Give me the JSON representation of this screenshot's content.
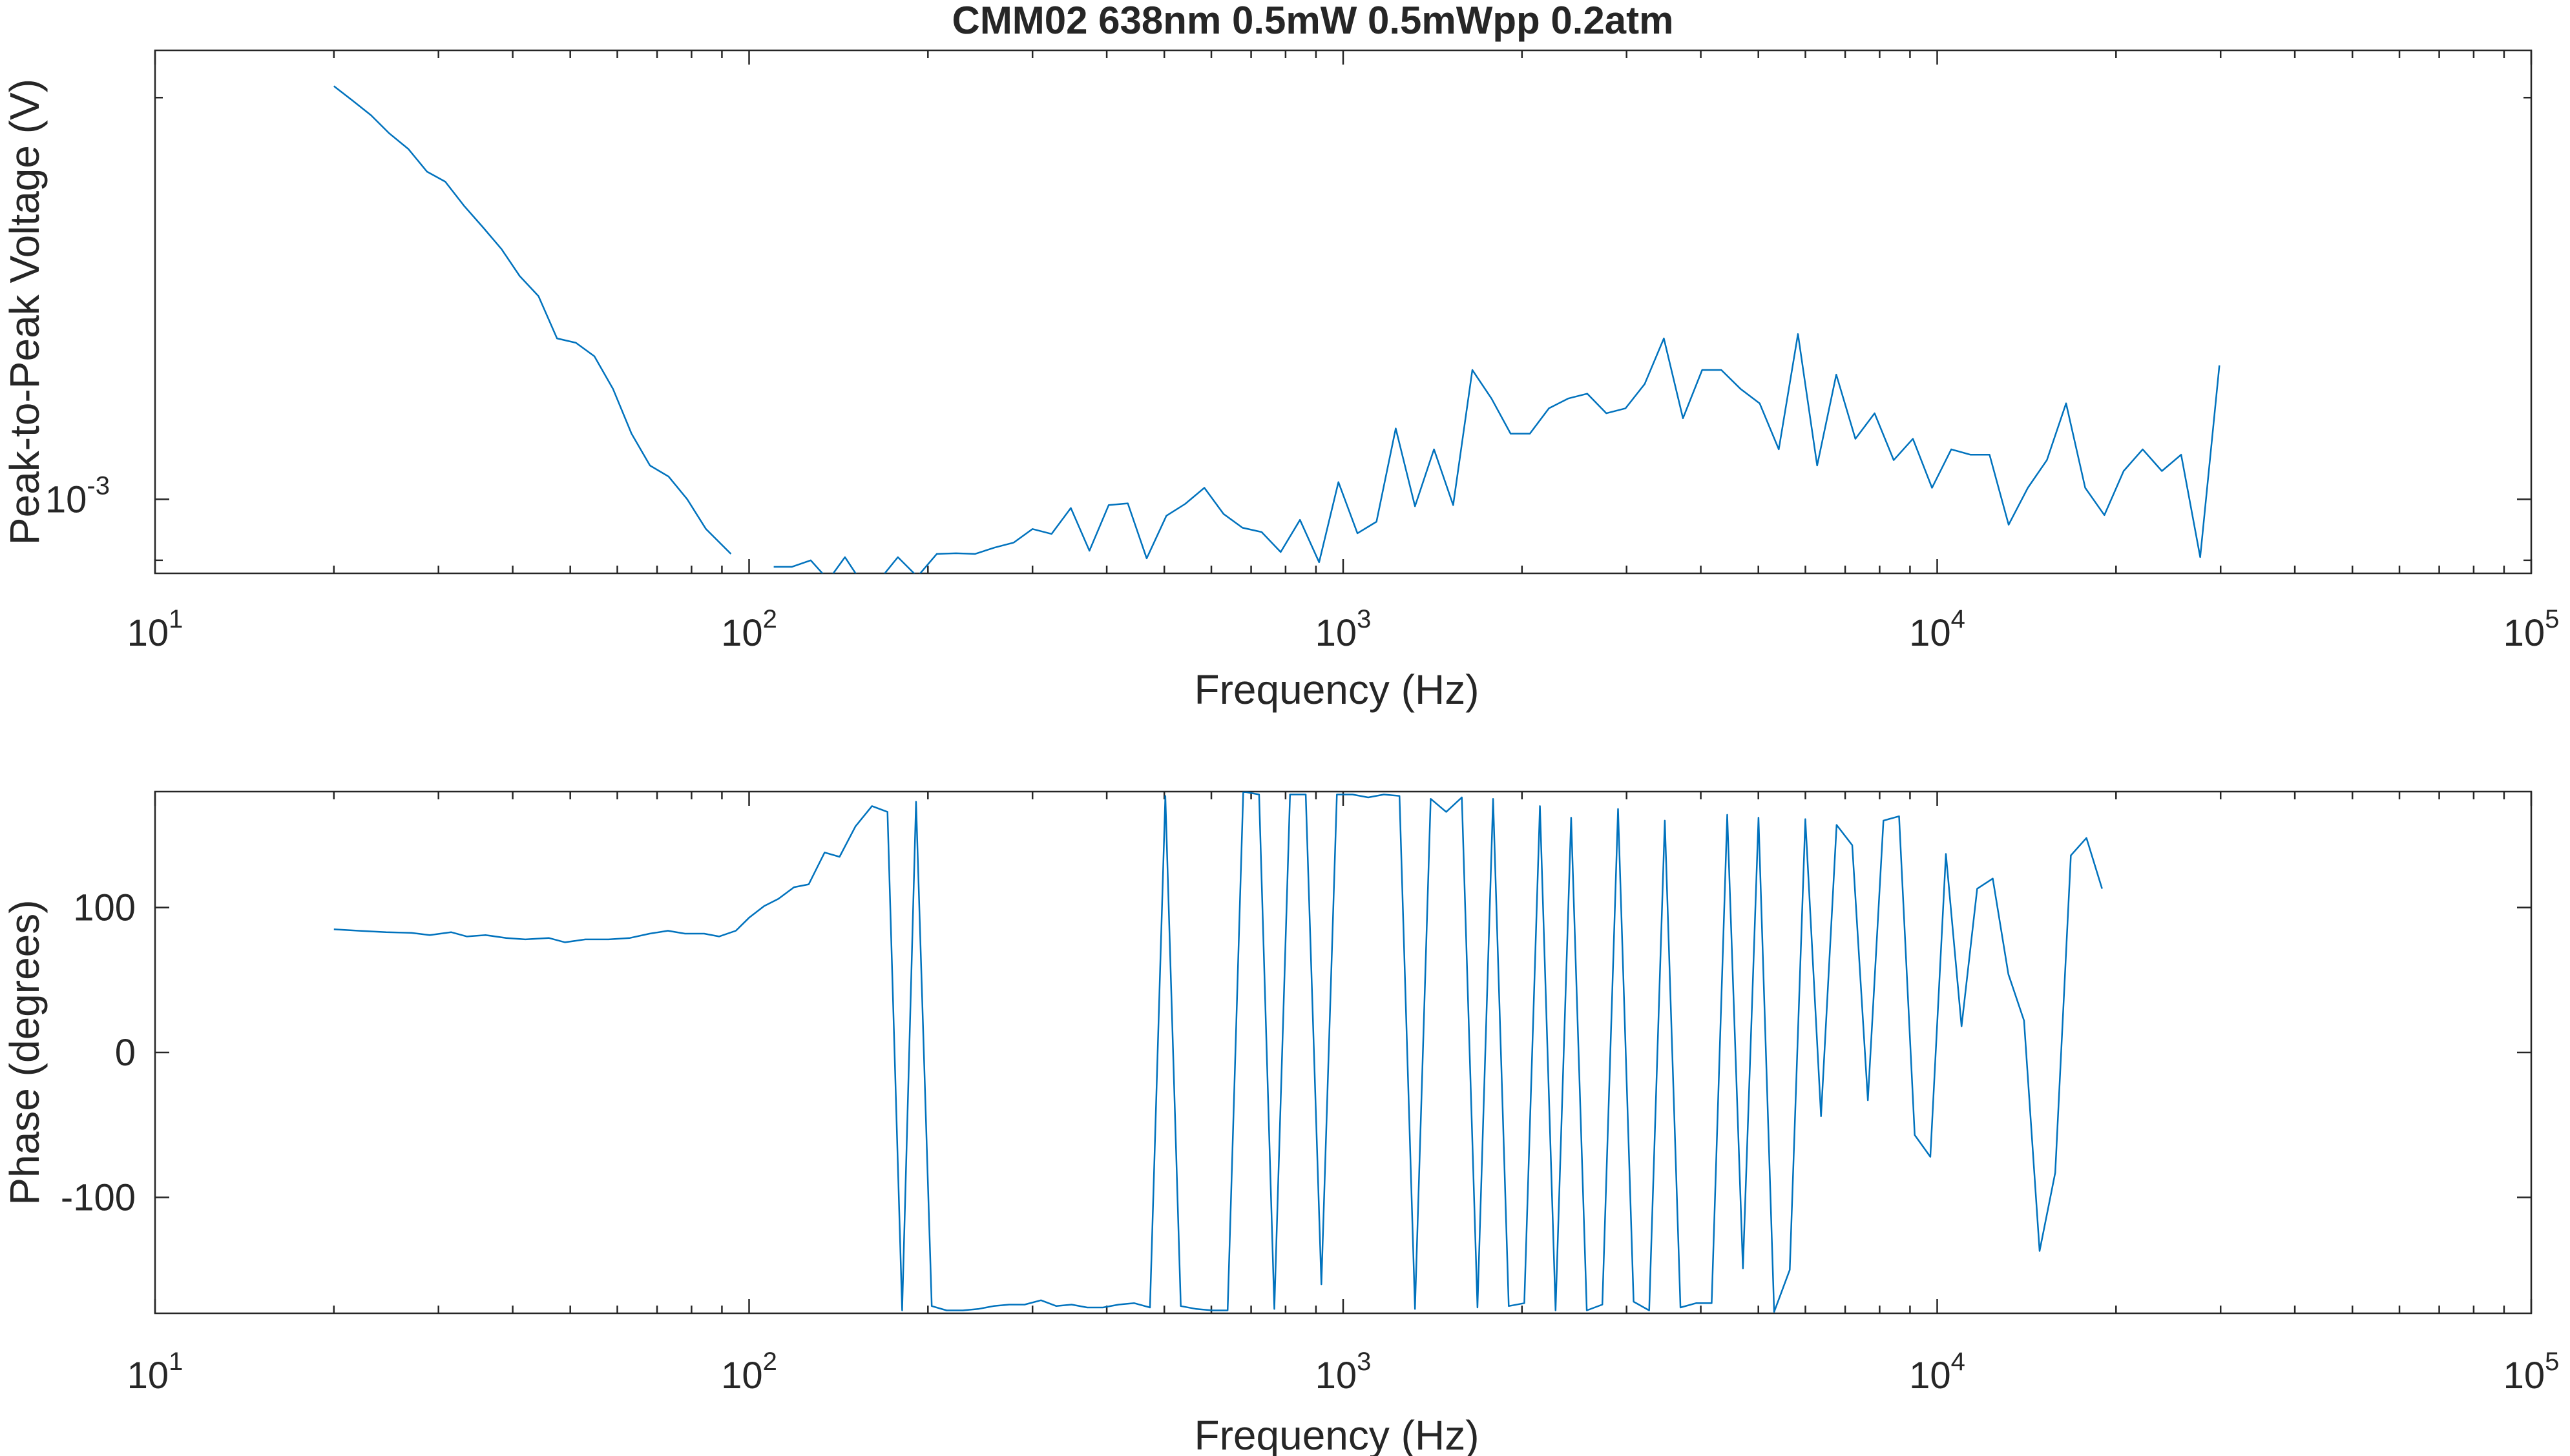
{
  "figure": {
    "title": "CMM02 638nm 0.5mW 0.5mWpp 0.2atm",
    "colors": {
      "series": "#0072BD",
      "axes": "#262626",
      "background": "#ffffff"
    }
  },
  "chart_data": [
    {
      "type": "line",
      "xscale": "log",
      "yscale": "log",
      "xlabel": "Frequency (Hz)",
      "ylabel": "Peak-to-Peak Voltage (V)",
      "xlim": [
        10,
        100000
      ],
      "ylim": [
        0.00088,
        0.00217
      ],
      "xticks": [
        {
          "base": "10",
          "exp": "1",
          "value": 10
        },
        {
          "base": "10",
          "exp": "2",
          "value": 100
        },
        {
          "base": "10",
          "exp": "3",
          "value": 1000
        },
        {
          "base": "10",
          "exp": "4",
          "value": 10000
        },
        {
          "base": "10",
          "exp": "5",
          "value": 100000
        }
      ],
      "yticks": [
        {
          "base": "10",
          "exp": "-3",
          "value": 0.001
        }
      ],
      "grid": false,
      "legend": "none",
      "series": [
        {
          "segments": [
            [
              [
                20,
                0.00204
              ],
              [
                21.5,
                0.00199
              ],
              [
                23.1,
                0.00194
              ],
              [
                24.8,
                0.00188
              ],
              [
                26.7,
                0.00183
              ],
              [
                28.7,
                0.00176
              ],
              [
                30.8,
                0.00173
              ],
              [
                33.1,
                0.00166
              ],
              [
                35.6,
                0.0016
              ],
              [
                38.3,
                0.00154
              ],
              [
                41.1,
                0.00147
              ],
              [
                44.2,
                0.00142
              ],
              [
                47.5,
                0.00132
              ],
              [
                51.1,
                0.00131
              ],
              [
                54.9,
                0.00128
              ],
              [
                59,
                0.00121
              ],
              [
                63.4,
                0.00112
              ],
              [
                68.1,
                0.00106
              ],
              [
                73.2,
                0.00104
              ],
              [
                78.7,
                0.001
              ],
              [
                84.6,
                0.00095
              ],
              [
                93.2,
                0.00091
              ]
            ],
            [
              [
                110,
                0.00089
              ],
              [
                118,
                0.00089
              ],
              [
                127,
                0.0009
              ],
              [
                136,
                0.00087
              ],
              [
                145,
                0.000905
              ],
              [
                155,
                0.000865
              ],
              [
                165,
                0.000868
              ],
              [
                178,
                0.000905
              ],
              [
                192,
                0.000875
              ],
              [
                207,
                0.00091
              ],
              [
                223,
                0.000911
              ],
              [
                240,
                0.00091
              ],
              [
                259,
                0.00092
              ],
              [
                279,
                0.000928
              ],
              [
                300,
                0.00095
              ],
              [
                323,
                0.000942
              ],
              [
                348,
                0.000985
              ],
              [
                374,
                0.000915
              ],
              [
                403,
                0.00099
              ],
              [
                434,
                0.000993
              ],
              [
                467,
                0.000903
              ],
              [
                504,
                0.000972
              ],
              [
                542,
                0.000992
              ],
              [
                584,
                0.00102
              ],
              [
                629,
                0.000975
              ],
              [
                677,
                0.000952
              ],
              [
                729,
                0.000945
              ],
              [
                785,
                0.000913
              ],
              [
                846,
                0.000965
              ],
              [
                911,
                0.000897
              ],
              [
                982,
                0.00103
              ],
              [
                1057,
                0.000943
              ],
              [
                1138,
                0.000962
              ],
              [
                1226,
                0.00113
              ],
              [
                1321,
                0.000988
              ],
              [
                1422,
                0.00109
              ],
              [
                1532,
                0.00099
              ],
              [
                1650,
                0.00125
              ],
              [
                1777,
                0.00119
              ],
              [
                1914,
                0.00112
              ],
              [
                2062,
                0.00112
              ],
              [
                2220,
                0.00117
              ],
              [
                2392,
                0.00119
              ],
              [
                2576,
                0.0012
              ],
              [
                2774,
                0.00116
              ],
              [
                2988,
                0.00117
              ],
              [
                3218,
                0.00122
              ],
              [
                3466,
                0.00132
              ],
              [
                3733,
                0.00115
              ],
              [
                4021,
                0.00125
              ],
              [
                4331,
                0.00125
              ],
              [
                4665,
                0.00121
              ],
              [
                5025,
                0.00118
              ],
              [
                5412,
                0.00109
              ],
              [
                5829,
                0.00133
              ],
              [
                6279,
                0.00106
              ],
              [
                6763,
                0.00124
              ],
              [
                7284,
                0.00111
              ],
              [
                7845,
                0.00116
              ],
              [
                8450,
                0.00107
              ],
              [
                9101,
                0.00111
              ],
              [
                9802,
                0.00102
              ],
              [
                10560,
                0.00109
              ],
              [
                11370,
                0.00108
              ],
              [
                12250,
                0.00108
              ],
              [
                13190,
                0.000957
              ],
              [
                14210,
                0.00102
              ],
              [
                15300,
                0.00107
              ],
              [
                16480,
                0.00118
              ],
              [
                17750,
                0.00102
              ],
              [
                19120,
                0.000973
              ],
              [
                20600,
                0.00105
              ],
              [
                22180,
                0.00109
              ],
              [
                23890,
                0.00105
              ],
              [
                25740,
                0.00108
              ],
              [
                27720,
                0.000905
              ],
              [
                29860,
                0.00126
              ]
            ]
          ]
        }
      ]
    },
    {
      "type": "line",
      "xscale": "log",
      "yscale": "linear",
      "xlabel": "Frequency (Hz)",
      "ylabel": "Phase (degrees)",
      "xlim": [
        10,
        100000
      ],
      "ylim": [
        -180,
        180
      ],
      "xticks": [
        {
          "base": "10",
          "exp": "1",
          "value": 10
        },
        {
          "base": "10",
          "exp": "2",
          "value": 100
        },
        {
          "base": "10",
          "exp": "3",
          "value": 1000
        },
        {
          "base": "10",
          "exp": "4",
          "value": 10000
        },
        {
          "base": "10",
          "exp": "5",
          "value": 100000
        }
      ],
      "yticks": [
        {
          "label": "100",
          "value": 100
        },
        {
          "label": "0",
          "value": 0
        },
        {
          "label": "-100",
          "value": -100
        }
      ],
      "grid": false,
      "legend": "none",
      "series": [
        {
          "segments": [
            [
              [
                20,
                85
              ],
              [
                22,
                84
              ],
              [
                24.5,
                83
              ],
              [
                27,
                82.5
              ],
              [
                29,
                81
              ],
              [
                31.5,
                83
              ],
              [
                33.5,
                80
              ],
              [
                36,
                81
              ],
              [
                39,
                79
              ],
              [
                42,
                78
              ],
              [
                46,
                79
              ],
              [
                49,
                76
              ],
              [
                53,
                78
              ],
              [
                58,
                78
              ],
              [
                63,
                79
              ],
              [
                68,
                82
              ],
              [
                73,
                84
              ],
              [
                78,
                82
              ],
              [
                84,
                82
              ],
              [
                89,
                80
              ],
              [
                95,
                84
              ],
              [
                100,
                93
              ],
              [
                106,
                101
              ],
              [
                112,
                106
              ],
              [
                119,
                114
              ],
              [
                126,
                116
              ],
              [
                134,
                138
              ],
              [
                142,
                135
              ],
              [
                151,
                156
              ],
              [
                161,
                170
              ],
              [
                171,
                166
              ],
              [
                181,
                -178
              ],
              [
                191,
                173
              ],
              [
                203,
                -175
              ],
              [
                215,
                -178
              ],
              [
                229,
                -178
              ],
              [
                243,
                -177
              ],
              [
                258,
                -175
              ],
              [
                274,
                -174
              ],
              [
                291,
                -174
              ],
              [
                310,
                -171
              ],
              [
                329,
                -175
              ],
              [
                349,
                -174
              ],
              [
                371,
                -176
              ],
              [
                394,
                -176
              ],
              [
                419,
                -174
              ],
              [
                445,
                -173
              ],
              [
                473,
                -176
              ],
              [
                502,
                177
              ],
              [
                533,
                -175
              ],
              [
                566,
                -177
              ],
              [
                602,
                -178
              ],
              [
                639,
                -178
              ],
              [
                679,
                180
              ],
              [
                722,
                178
              ],
              [
                766,
                -177
              ],
              [
                814,
                178
              ],
              [
                865,
                178
              ],
              [
                919,
                -160
              ],
              [
                976,
                178
              ],
              [
                1037,
                178
              ],
              [
                1102,
                176
              ],
              [
                1171,
                178
              ],
              [
                1244,
                177
              ],
              [
                1321,
                -177
              ],
              [
                1404,
                175
              ],
              [
                1491,
                166
              ],
              [
                1584,
                176
              ],
              [
                1683,
                -176
              ],
              [
                1788,
                175
              ],
              [
                1900,
                -175
              ],
              [
                2018,
                -173
              ],
              [
                2144,
                170
              ],
              [
                2278,
                -178
              ],
              [
                2420,
                162
              ],
              [
                2571,
                -178
              ],
              [
                2731,
                -174
              ],
              [
                2902,
                168
              ],
              [
                3083,
                -172
              ],
              [
                3275,
                -178
              ],
              [
                3479,
                160
              ],
              [
                3697,
                -176
              ],
              [
                3927,
                -173
              ],
              [
                4172,
                -173
              ],
              [
                4432,
                164
              ],
              [
                4709,
                -149
              ],
              [
                5003,
                162
              ],
              [
                5315,
                -179
              ],
              [
                5647,
                -150
              ],
              [
                5999,
                161
              ],
              [
                6374,
                -44
              ],
              [
                6772,
                157
              ],
              [
                7194,
                143
              ],
              [
                7643,
                -33
              ],
              [
                8120,
                160
              ],
              [
                8627,
                163
              ],
              [
                9165,
                -57
              ],
              [
                9737,
                -72
              ],
              [
                10344,
                137
              ],
              [
                10990,
                18
              ],
              [
                11676,
                113
              ],
              [
                12404,
                120
              ],
              [
                13178,
                54
              ],
              [
                14000,
                22
              ],
              [
                14873,
                -137
              ],
              [
                15801,
                -83
              ],
              [
                16787,
                136
              ],
              [
                17834,
                148
              ],
              [
                18947,
                113
              ]
            ]
          ]
        }
      ]
    }
  ]
}
